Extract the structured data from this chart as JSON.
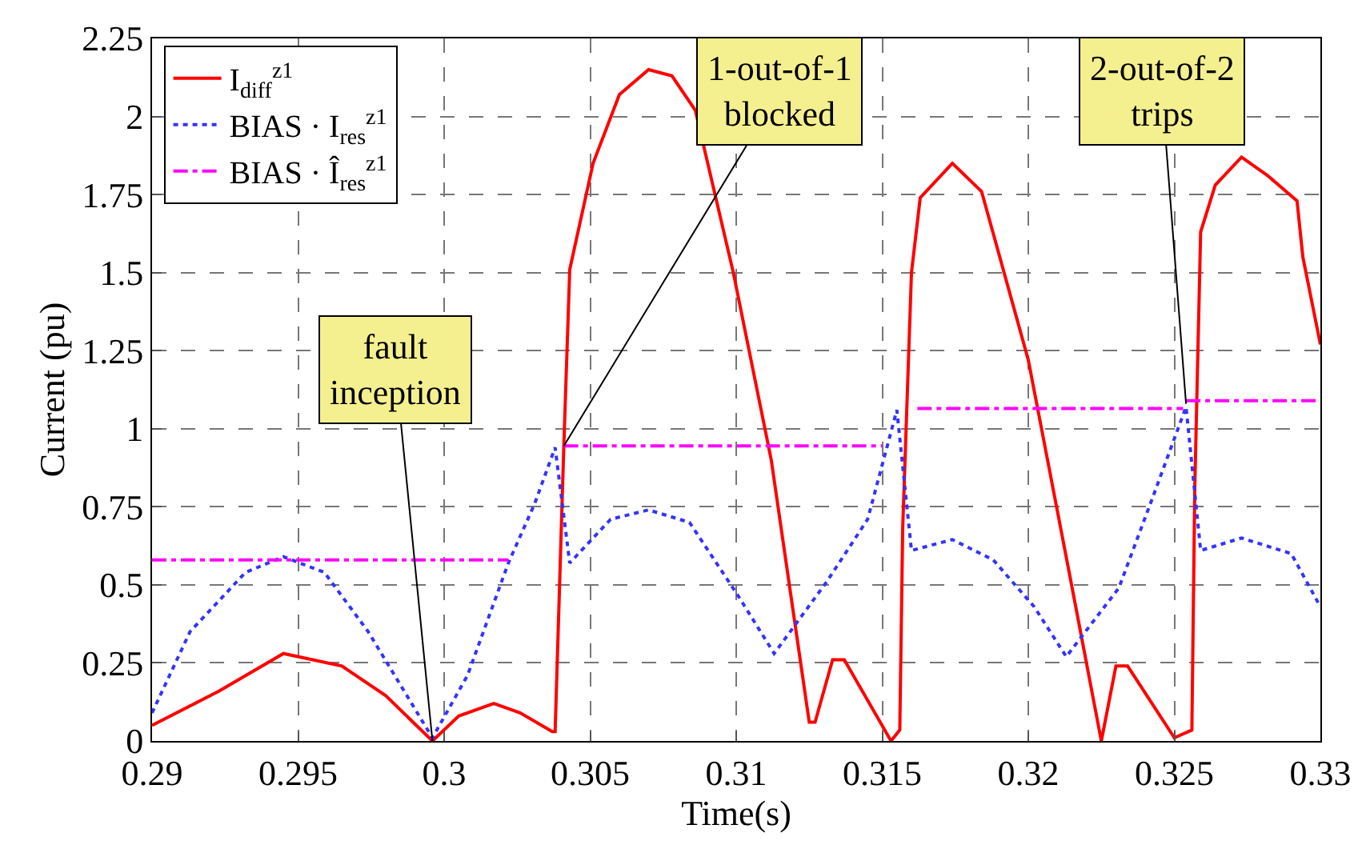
{
  "chart_data": {
    "type": "line",
    "xlabel": "Time(s)",
    "ylabel": "Current (pu)",
    "xlim": [
      0.29,
      0.33
    ],
    "xticks": [
      0.29,
      0.295,
      0.3,
      0.305,
      0.31,
      0.315,
      0.32,
      0.325,
      0.33
    ],
    "ylim": [
      0,
      2.25
    ],
    "yticks": [
      0,
      0.25,
      0.5,
      0.75,
      1,
      1.25,
      1.5,
      1.75,
      2,
      2.25
    ],
    "grid": true,
    "legend": "top left",
    "marker": "none",
    "series": [
      {
        "name": "I$_{diff}$$^{z1}$",
        "color": "#ff0000",
        "line_style": "solid",
        "x": [
          0.29,
          0.2923,
          0.2945,
          0.2965,
          0.298,
          0.2996,
          0.3005,
          0.3017,
          0.3026,
          0.3037,
          0.3038,
          0.3041,
          0.3043,
          0.3051,
          0.306,
          0.307,
          0.3078,
          0.3086,
          0.3099,
          0.3112,
          0.3125,
          0.3127,
          0.3133,
          0.3137,
          0.3153,
          0.3156,
          0.3157,
          0.316,
          0.3163,
          0.3174,
          0.3184,
          0.32,
          0.3214,
          0.3225,
          0.323,
          0.3234,
          0.325,
          0.3256,
          0.3257,
          0.3259,
          0.3264,
          0.3273,
          0.3282,
          0.3292,
          0.3294,
          0.33
        ],
        "values": [
          0.05,
          0.16,
          0.28,
          0.24,
          0.145,
          0.0,
          0.08,
          0.12,
          0.09,
          0.03,
          0.03,
          0.95,
          1.51,
          1.85,
          2.07,
          2.15,
          2.13,
          2.02,
          1.5,
          0.9,
          0.06,
          0.06,
          0.26,
          0.26,
          0.0,
          0.035,
          0.68,
          1.5,
          1.74,
          1.85,
          1.76,
          1.22,
          0.54,
          0.0,
          0.24,
          0.24,
          0.01,
          0.035,
          0.81,
          1.63,
          1.78,
          1.87,
          1.81,
          1.73,
          1.55,
          1.27
        ]
      },
      {
        "name": "BIAS · I$_{res}$$^{z1}$",
        "color": "#3333ff",
        "line_style": "dotted",
        "x": [
          0.29,
          0.2913,
          0.2932,
          0.2945,
          0.2959,
          0.2974,
          0.2996,
          0.3008,
          0.3022,
          0.3031,
          0.3038,
          0.3043,
          0.3057,
          0.307,
          0.3084,
          0.3101,
          0.3113,
          0.3131,
          0.3145,
          0.3155,
          0.316,
          0.3174,
          0.3188,
          0.3202,
          0.3213,
          0.3231,
          0.3243,
          0.3254,
          0.3259,
          0.3273,
          0.329,
          0.33
        ],
        "values": [
          0.09,
          0.35,
          0.54,
          0.59,
          0.54,
          0.35,
          0.01,
          0.21,
          0.57,
          0.76,
          0.94,
          0.57,
          0.71,
          0.74,
          0.7,
          0.46,
          0.28,
          0.51,
          0.71,
          1.06,
          0.61,
          0.645,
          0.58,
          0.43,
          0.27,
          0.49,
          0.79,
          1.07,
          0.61,
          0.65,
          0.6,
          0.43
        ]
      },
      {
        "name": "BIAS · Î$_{res}$$^{z1}$",
        "color": "#ff00ff",
        "line_style": "dashdot",
        "x": [
          0.29,
          0.3022,
          0.3032,
          0.3041,
          0.315,
          0.3156,
          0.3162,
          0.3253,
          0.32535,
          0.3254,
          0.33
        ],
        "values": [
          0.58,
          0.58,
          null,
          0.945,
          0.945,
          null,
          1.065,
          1.065,
          null,
          1.09,
          1.09
        ]
      }
    ],
    "annotations": [
      {
        "text": "fault\ninception",
        "x": 0.2996,
        "y": 0.0
      },
      {
        "text": "1-out-of-1\nblocked",
        "x": 0.3041,
        "y": 0.945
      },
      {
        "text": "2-out-of-2\ntrips",
        "x": 0.3254,
        "y": 1.08
      }
    ]
  }
}
